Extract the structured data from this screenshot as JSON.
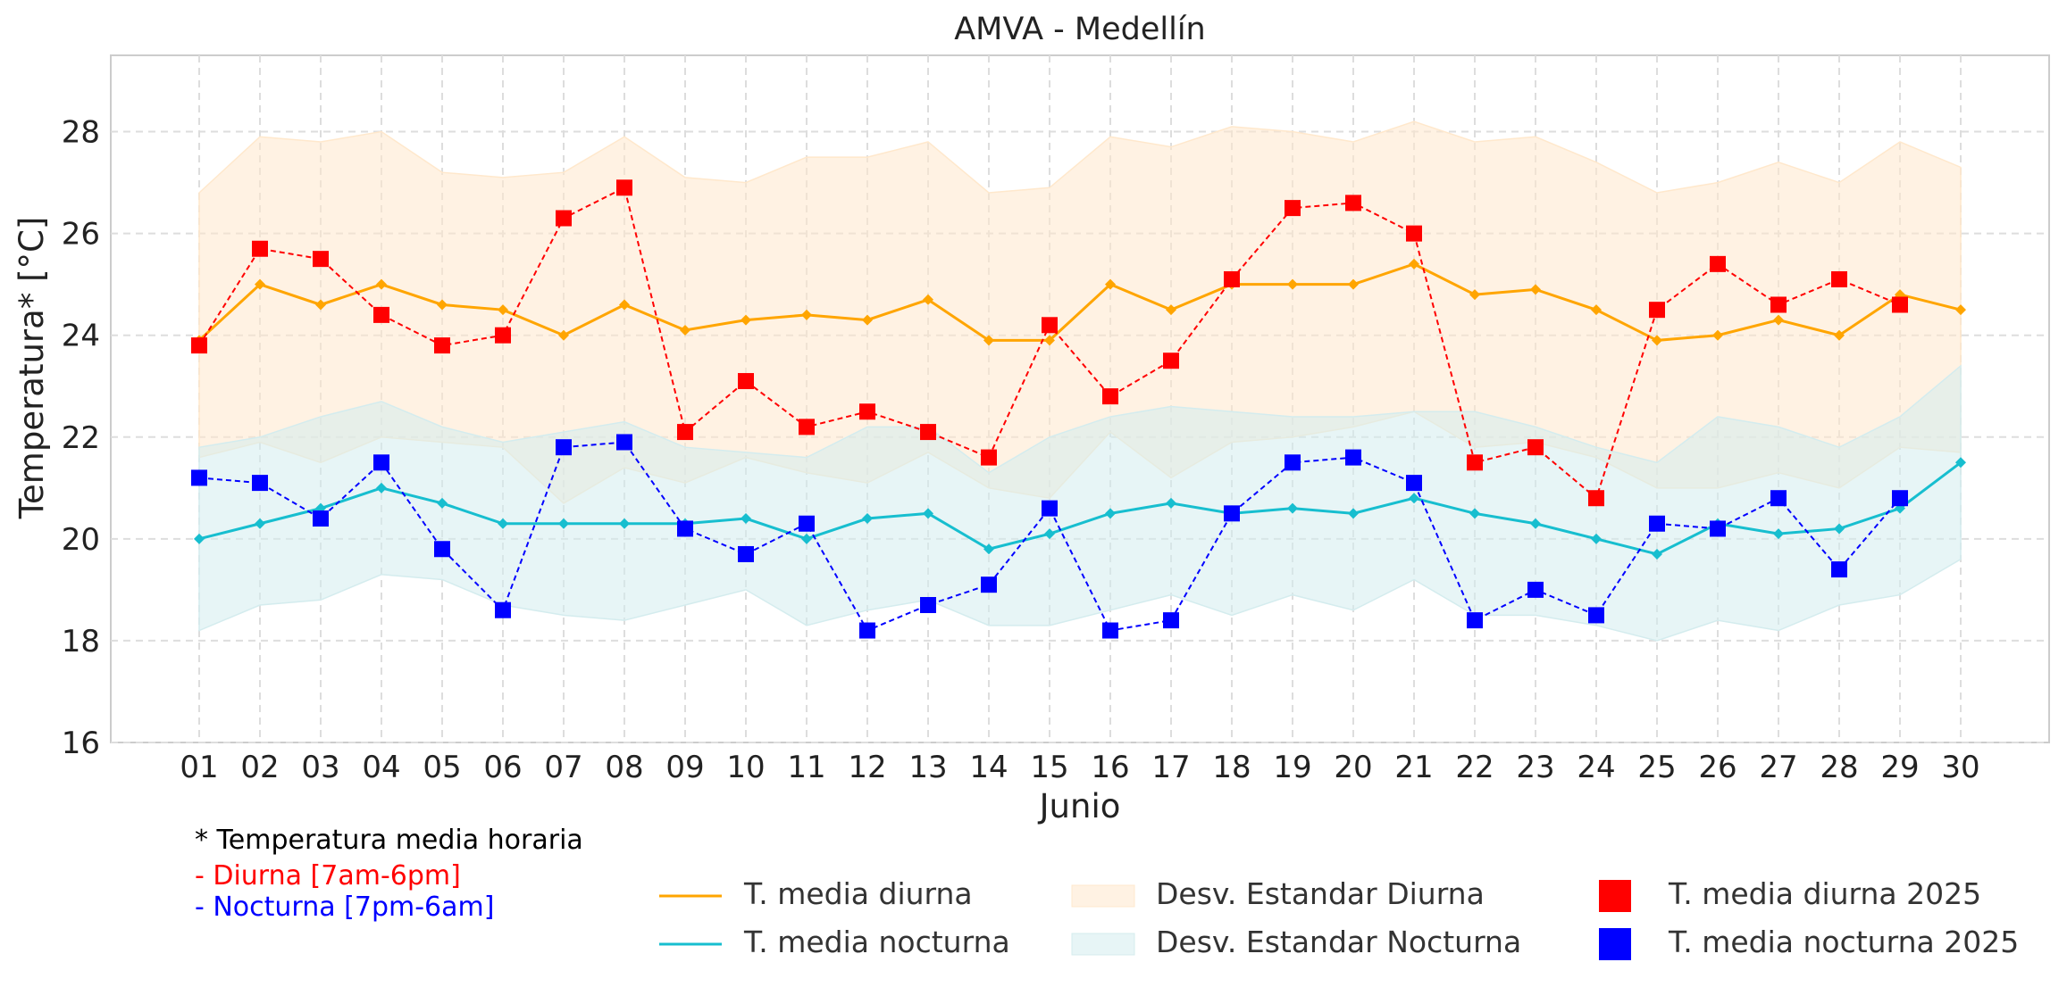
{
  "chart_data": {
    "type": "line",
    "title": "AMVA - Medellín",
    "xlabel": "Junio",
    "ylabel": "Temperatura* [°C]",
    "ylim": [
      16,
      29.5
    ],
    "yticks": [
      16,
      18,
      20,
      22,
      24,
      26,
      28
    ],
    "categories": [
      "01",
      "02",
      "03",
      "04",
      "05",
      "06",
      "07",
      "08",
      "09",
      "10",
      "11",
      "12",
      "13",
      "14",
      "15",
      "16",
      "17",
      "18",
      "19",
      "20",
      "21",
      "22",
      "23",
      "24",
      "25",
      "26",
      "27",
      "28",
      "29",
      "30"
    ],
    "grid": true,
    "series": [
      {
        "name": "T. media diurna",
        "style": "line",
        "color": "#ffa500",
        "values": [
          23.9,
          25.0,
          24.6,
          25.0,
          24.6,
          24.5,
          24.0,
          24.6,
          24.1,
          24.3,
          24.4,
          24.3,
          24.7,
          23.9,
          23.9,
          25.0,
          24.5,
          25.0,
          25.0,
          25.0,
          25.4,
          24.8,
          24.9,
          24.5,
          23.9,
          24.0,
          24.3,
          24.0,
          24.8,
          24.5
        ]
      },
      {
        "name": "T. media nocturna",
        "style": "line",
        "color": "#17becf",
        "values": [
          20.0,
          20.3,
          20.6,
          21.0,
          20.7,
          20.3,
          20.3,
          20.3,
          20.3,
          20.4,
          20.0,
          20.4,
          20.5,
          19.8,
          20.1,
          20.5,
          20.7,
          20.5,
          20.6,
          20.5,
          20.8,
          20.5,
          20.3,
          20.0,
          19.7,
          20.3,
          20.1,
          20.2,
          20.6,
          21.5
        ]
      },
      {
        "name": "Desv. Estandar Diurna",
        "style": "band",
        "color": "#ffe8cc",
        "upper": [
          26.8,
          27.9,
          27.8,
          28.0,
          27.2,
          27.1,
          27.2,
          27.9,
          27.1,
          27.0,
          27.5,
          27.5,
          27.8,
          26.8,
          26.9,
          27.9,
          27.7,
          28.1,
          28.0,
          27.8,
          28.2,
          27.8,
          27.9,
          27.4,
          26.8,
          27.0,
          27.4,
          27.0,
          27.8,
          27.3
        ],
        "lower": [
          21.6,
          21.9,
          21.5,
          22.0,
          21.9,
          21.8,
          20.7,
          21.4,
          21.1,
          21.6,
          21.3,
          21.1,
          21.7,
          21.0,
          20.8,
          22.1,
          21.2,
          21.9,
          22.0,
          22.2,
          22.5,
          21.8,
          21.9,
          21.6,
          21.0,
          21.0,
          21.3,
          21.0,
          21.8,
          21.7
        ]
      },
      {
        "name": "Desv. Estandar Nocturna",
        "style": "band",
        "color": "#d4ecee",
        "upper": [
          21.8,
          22.0,
          22.4,
          22.7,
          22.2,
          21.9,
          22.1,
          22.3,
          21.8,
          21.7,
          21.6,
          22.2,
          22.2,
          21.3,
          22.0,
          22.4,
          22.6,
          22.5,
          22.4,
          22.4,
          22.5,
          22.5,
          22.2,
          21.8,
          21.5,
          22.4,
          22.2,
          21.8,
          22.4,
          23.4
        ],
        "lower": [
          18.2,
          18.7,
          18.8,
          19.3,
          19.2,
          18.7,
          18.5,
          18.4,
          18.7,
          19.0,
          18.3,
          18.6,
          18.8,
          18.3,
          18.3,
          18.6,
          18.9,
          18.5,
          18.9,
          18.6,
          19.2,
          18.5,
          18.5,
          18.3,
          18.0,
          18.4,
          18.2,
          18.7,
          18.9,
          19.6
        ]
      },
      {
        "name": "T. media diurna 2025",
        "style": "markers-dashed",
        "color": "#ff0000",
        "values": [
          23.8,
          25.7,
          25.5,
          24.4,
          23.8,
          24.0,
          26.3,
          26.9,
          22.1,
          23.1,
          22.2,
          22.5,
          22.1,
          21.6,
          24.2,
          22.8,
          23.5,
          25.1,
          26.5,
          26.6,
          26.0,
          21.5,
          21.8,
          20.8,
          24.5,
          25.4,
          24.6,
          25.1,
          24.6,
          null
        ]
      },
      {
        "name": "T. media nocturna 2025",
        "style": "markers-dashed",
        "color": "#0000ff",
        "values": [
          21.2,
          21.1,
          20.4,
          21.5,
          19.8,
          18.6,
          21.8,
          21.9,
          20.2,
          19.7,
          20.3,
          18.2,
          18.7,
          19.1,
          20.6,
          18.2,
          18.4,
          20.5,
          21.5,
          21.6,
          21.1,
          18.4,
          19.0,
          18.5,
          20.3,
          20.2,
          20.8,
          19.4,
          20.8,
          null
        ]
      }
    ]
  },
  "notes": {
    "footnote": "* Temperatura media horaria",
    "day": "- Diurna [7am-6pm]",
    "night": "- Nocturna [7pm-6am]",
    "day_color": "#ff0000",
    "night_color": "#0000ff"
  }
}
